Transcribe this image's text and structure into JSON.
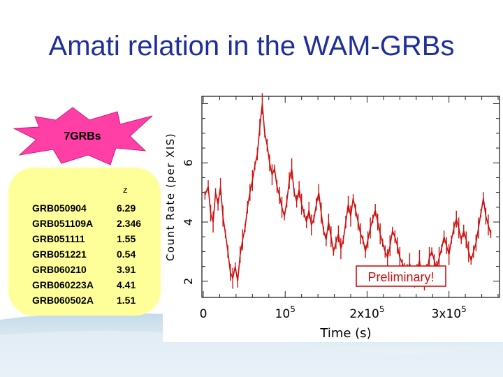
{
  "slide": {
    "title": "Amati relation in the WAM-GRBs",
    "burst_label": "7GRBs",
    "colors": {
      "title": "#1f2f9a",
      "panel": "#ffff99",
      "burst": "#ff3fa6",
      "curve": "#cc1111",
      "preliminary_border": "#cc0000"
    }
  },
  "grb_table": {
    "header": "z",
    "rows": [
      {
        "name": "GRB050904",
        "z": "6.29"
      },
      {
        "name": "GRB051109A",
        "z": "2.346"
      },
      {
        "name": "GRB051111",
        "z": "1.55"
      },
      {
        "name": "GRB051221",
        "z": "0.54"
      },
      {
        "name": "GRB060210",
        "z": "3.91"
      },
      {
        "name": "GRB060223A",
        "z": "4.41"
      },
      {
        "name": "GRB060502A",
        "z": "1.51"
      }
    ]
  },
  "chart_data": {
    "type": "line",
    "xlabel": "Time (s)",
    "ylabel": "Count Rate (per XIS)",
    "xlim": [
      0,
      360000
    ],
    "ylim": [
      1.5,
      8.2
    ],
    "x_tick_labels": [
      {
        "value": 0,
        "base": "0",
        "exp": ""
      },
      {
        "value": 100000,
        "base": "10",
        "exp": "5"
      },
      {
        "value": 200000,
        "base": "2x10",
        "exp": "5"
      },
      {
        "value": 300000,
        "base": "3x10",
        "exp": "5"
      }
    ],
    "y_tick_labels": [
      {
        "value": 2,
        "label": "2"
      },
      {
        "value": 4,
        "label": "4"
      },
      {
        "value": 6,
        "label": "6"
      }
    ],
    "annotation": "Preliminary!",
    "series": [
      {
        "color": "#cc1111",
        "x": [
          2000,
          6000,
          9000,
          12000,
          15000,
          18000,
          21000,
          24000,
          27000,
          30000,
          33000,
          36000,
          39000,
          42000,
          45000,
          48000,
          51000,
          54000,
          57000,
          60000,
          63000,
          66000,
          69000,
          72000,
          75000,
          78000,
          81000,
          84000,
          87000,
          90000,
          93000,
          96000,
          99000,
          102000,
          105000,
          108000,
          111000,
          114000,
          117000,
          120000,
          123000,
          126000,
          129000,
          132000,
          135000,
          138000,
          141000,
          144000,
          147000,
          150000,
          153000,
          156000,
          159000,
          162000,
          165000,
          168000,
          171000,
          174000,
          177000,
          180000,
          183000,
          186000,
          189000,
          192000,
          195000,
          198000,
          201000,
          204000,
          207000,
          210000,
          213000,
          216000,
          219000,
          222000,
          225000,
          228000,
          231000,
          234000,
          237000,
          240000,
          243000,
          246000,
          249000,
          252000,
          255000,
          258000,
          261000,
          264000,
          267000,
          270000,
          273000,
          276000,
          279000,
          282000,
          285000,
          288000,
          291000,
          294000,
          297000,
          300000,
          303000,
          306000,
          309000,
          312000,
          315000,
          318000,
          321000,
          324000,
          327000,
          330000,
          333000,
          336000,
          339000,
          342000,
          345000,
          348000,
          351000
        ],
        "y": [
          4.9,
          5.2,
          4.3,
          4.0,
          5.0,
          4.6,
          5.2,
          4.2,
          3.6,
          3.0,
          2.3,
          2.1,
          2.5,
          2.0,
          2.9,
          3.4,
          3.8,
          4.5,
          5.0,
          5.4,
          5.9,
          6.3,
          7.2,
          8.0,
          7.0,
          6.6,
          6.0,
          5.6,
          5.8,
          5.2,
          4.9,
          4.5,
          4.2,
          4.7,
          5.4,
          5.8,
          5.0,
          4.7,
          5.1,
          4.6,
          4.3,
          4.0,
          4.4,
          3.9,
          4.1,
          4.6,
          5.0,
          4.3,
          3.7,
          3.4,
          4.0,
          3.5,
          3.0,
          3.3,
          3.6,
          3.1,
          3.4,
          4.0,
          4.6,
          4.2,
          4.8,
          4.4,
          4.0,
          3.6,
          3.4,
          3.0,
          3.4,
          3.8,
          4.1,
          4.4,
          4.0,
          3.6,
          3.3,
          3.0,
          2.8,
          3.2,
          3.7,
          3.5,
          3.2,
          2.8,
          2.6,
          2.4,
          2.3,
          2.6,
          2.2,
          2.0,
          2.3,
          2.7,
          2.1,
          1.9,
          2.3,
          2.8,
          3.0,
          2.7,
          2.4,
          2.8,
          3.1,
          3.5,
          3.2,
          2.9,
          3.4,
          3.8,
          4.1,
          3.8,
          3.4,
          3.7,
          3.4,
          3.0,
          2.7,
          3.0,
          3.3,
          3.8,
          4.3,
          4.8,
          4.2,
          3.9,
          3.6
        ]
      }
    ]
  }
}
